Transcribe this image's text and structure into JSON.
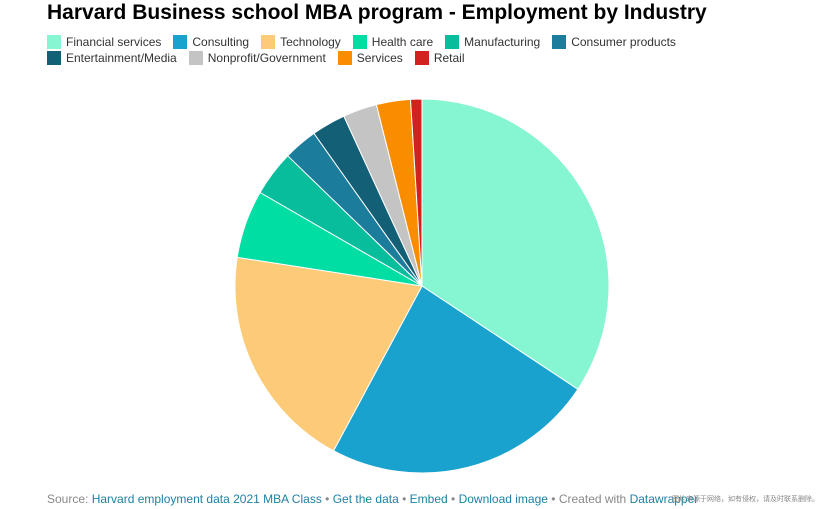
{
  "header": {
    "title": "Harvard Business school MBA program - Employment by Industry"
  },
  "chart_data": {
    "type": "pie",
    "title": "Harvard Business school MBA program - Employment by Industry",
    "legend_position": "top-left",
    "slices": [
      {
        "label": "Financial services",
        "value": 35,
        "color": "#85f5d2"
      },
      {
        "label": "Consulting",
        "value": 24,
        "color": "#1aa2cf"
      },
      {
        "label": "Technology",
        "value": 20,
        "color": "#fdca78"
      },
      {
        "label": "Health care",
        "value": 6,
        "color": "#00dea4"
      },
      {
        "label": "Manufacturing",
        "value": 4,
        "color": "#08bd9c"
      },
      {
        "label": "Consumer products",
        "value": 3,
        "color": "#1c7c9b"
      },
      {
        "label": "Entertainment/Media",
        "value": 3,
        "color": "#135f76"
      },
      {
        "label": "Nonprofit/Government",
        "value": 3,
        "color": "#c4c4c4"
      },
      {
        "label": "Services",
        "value": 3,
        "color": "#fa8c00"
      },
      {
        "label": "Retail",
        "value": 1,
        "color": "#d3211f"
      }
    ]
  },
  "footer": {
    "source_label": "Source:",
    "source_link": "Harvard employment data 2021 MBA Class",
    "get_data": "Get the data",
    "embed": "Embed",
    "download": "Download image",
    "created_with": "Created with",
    "tool": "Datawrapper",
    "separator": "•"
  },
  "watermark": "图片来源于网络，如有侵权，请及时联系删除。"
}
